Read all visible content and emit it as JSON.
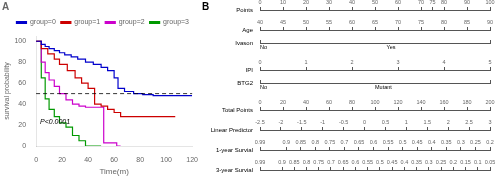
{
  "chart_data": [
    {
      "type": "line",
      "title": "A",
      "xlabel": "Time(m)",
      "ylabel": "survival probability",
      "xlim": [
        0,
        120
      ],
      "ylim": [
        0,
        105
      ],
      "xticks": [
        0,
        20,
        40,
        60,
        80,
        100,
        120
      ],
      "yticks": [
        0,
        20,
        40,
        60,
        80,
        100
      ],
      "grid": false,
      "legend": "upper right",
      "series": [
        {
          "name": "group=0",
          "color": "#0000CC",
          "line_style": "steps-post",
          "x": [
            0,
            4,
            7,
            10,
            14,
            18,
            22,
            27,
            32,
            38,
            44,
            50,
            55,
            60,
            63,
            68,
            75,
            82,
            90,
            100,
            107,
            120
          ],
          "values": [
            100,
            97,
            95,
            93,
            91,
            89,
            87,
            85,
            83,
            80,
            78,
            75,
            72,
            65,
            55,
            52,
            50,
            49,
            48,
            48,
            48,
            48
          ]
        },
        {
          "name": "group=1",
          "color": "#CC0000",
          "line_style": "steps-post",
          "x": [
            0,
            4,
            9,
            14,
            18,
            24,
            30,
            35,
            40,
            45,
            50,
            55,
            60,
            65,
            70,
            80,
            90,
            107
          ],
          "values": [
            100,
            93,
            88,
            83,
            78,
            72,
            65,
            60,
            55,
            40,
            38,
            35,
            32,
            28,
            28,
            28,
            28,
            28
          ]
        },
        {
          "name": "group=2",
          "color": "#CC00CC",
          "line_style": "steps-post",
          "x": [
            0,
            4,
            7,
            10,
            14,
            18,
            23,
            28,
            33,
            38,
            43,
            48,
            52,
            57,
            62,
            65
          ],
          "values": [
            100,
            80,
            70,
            63,
            57,
            50,
            44,
            40,
            38,
            37,
            37,
            37,
            3,
            3,
            0,
            0
          ]
        },
        {
          "name": "group=3",
          "color": "#009900",
          "line_style": "steps-post",
          "x": [
            0,
            4,
            7,
            10,
            14,
            18,
            23,
            28,
            33,
            38,
            50
          ],
          "values": [
            100,
            65,
            45,
            35,
            28,
            22,
            18,
            10,
            5,
            0,
            0
          ]
        }
      ],
      "annotations": [
        {
          "x": 3,
          "y": 21,
          "text": "P<0.0001"
        }
      ],
      "reference_lines": [
        {
          "y": 50,
          "color": "#000000",
          "line_style": "dashed"
        }
      ]
    },
    {
      "type": "nomogram",
      "title": "B",
      "rows": [
        {
          "label": "Points",
          "xlim": [
            0,
            100
          ],
          "xticks": [
            0,
            10,
            20,
            30,
            40,
            50,
            60,
            70,
            75,
            80,
            90,
            100
          ]
        },
        {
          "label": "Age",
          "xlim": [
            40,
            90
          ],
          "xticks": [
            40,
            45,
            50,
            55,
            60,
            65,
            70,
            75,
            80,
            85,
            90
          ]
        },
        {
          "label": "Ivason",
          "xlim": [
            0,
            1
          ],
          "xticks": [
            0,
            1
          ],
          "tick_labels": false,
          "annotations": [
            {
              "x": 0.0,
              "text": "No"
            },
            {
              "x": 0.55,
              "text": "Yes"
            }
          ]
        },
        {
          "label": "IPI",
          "xlim": [
            0,
            5
          ],
          "xticks": [
            0,
            1,
            2,
            3,
            4,
            5
          ]
        },
        {
          "label": "BTG2",
          "xlim": [
            0,
            1
          ],
          "xticks": [
            0,
            1
          ],
          "tick_labels": false,
          "annotations": [
            {
              "x": 0.0,
              "text": "No"
            },
            {
              "x": 0.5,
              "text": "Mutant"
            }
          ]
        },
        {
          "label": "Total Points",
          "xlim": [
            0,
            200
          ],
          "xticks": [
            0,
            20,
            40,
            60,
            80,
            100,
            120,
            140,
            160,
            180,
            200
          ]
        },
        {
          "label": "Linear Predictor",
          "xlim": [
            -2.5,
            3
          ],
          "xticks": [
            -2.5,
            -2,
            -1.5,
            -1,
            -0.5,
            0,
            0.5,
            1,
            1.5,
            2,
            2.5,
            3
          ]
        },
        {
          "label": "1-year Survial",
          "xlim": [
            0.99,
            0.2
          ],
          "xticks": [
            0.99,
            0.9,
            0.85,
            0.8,
            0.75,
            0.7,
            0.65,
            0.6,
            0.55,
            0.5,
            0.45,
            0.4,
            0.35,
            0.3,
            0.25,
            0.2
          ]
        },
        {
          "label": "3-year Survial",
          "xlim": [
            0.99,
            0.05
          ],
          "xticks": [
            0.99,
            0.9,
            0.85,
            0.8,
            0.75,
            0.7,
            0.65,
            0.6,
            0.55,
            0.5,
            0.45,
            0.4,
            0.35,
            0.3,
            0.25,
            0.2,
            0.15,
            0.1,
            0.05
          ]
        }
      ]
    }
  ]
}
